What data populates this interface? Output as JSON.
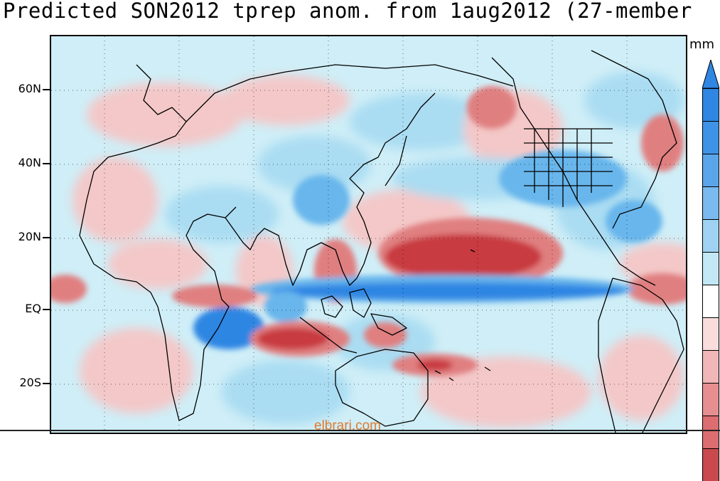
{
  "title": "Predicted SON2012 tprep anom. from 1aug2012 (27-member",
  "unit_label": "mm",
  "watermark": "elbrari.com",
  "lat_labels": [
    "60N",
    "40N",
    "20N",
    "EQ",
    "20S"
  ],
  "colors": {
    "background_light_blue": "#cfeef7",
    "light_red": "#f6c6c6",
    "mid_red": "#e07f80",
    "dark_red": "#c83a3f",
    "light_blue": "#a9dcf2",
    "mid_blue": "#68b6ec",
    "dark_blue": "#2f86e3",
    "coast": "#000000",
    "watermark": "#e07a2e"
  },
  "colorbar_colors": [
    "#2f86e3",
    "#3f93e6",
    "#5aa5ea",
    "#7abaee",
    "#9fd2f2",
    "#c2e8f5",
    "#ffffff",
    "#f9dcdc",
    "#f1b6b7",
    "#e68e90",
    "#dc6d70",
    "#c9494d"
  ]
}
